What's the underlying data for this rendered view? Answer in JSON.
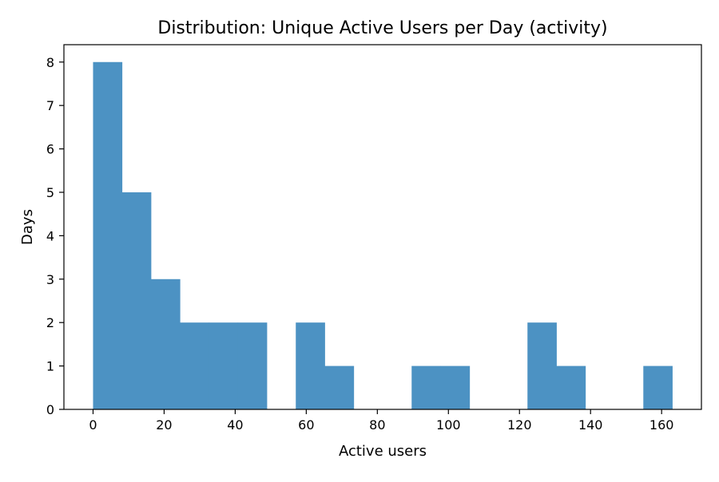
{
  "chart_data": {
    "type": "bar",
    "title": "Distribution: Unique Active Users per Day (activity)",
    "xlabel": "Active users",
    "ylabel": "Days",
    "xlim": [
      -8.2,
      171.2
    ],
    "ylim": [
      0,
      8.4
    ],
    "x_ticks": [
      0,
      20,
      40,
      60,
      80,
      100,
      120,
      140,
      160
    ],
    "y_ticks": [
      0,
      1,
      2,
      3,
      4,
      5,
      6,
      7,
      8
    ],
    "bin_edges": [
      0,
      8.15,
      16.3,
      24.45,
      32.6,
      40.75,
      48.9,
      57.05,
      65.2,
      73.35,
      81.5,
      89.65,
      97.8,
      105.95,
      114.1,
      122.25,
      130.4,
      138.55,
      146.7,
      154.85,
      163
    ],
    "values": [
      8,
      5,
      3,
      2,
      2,
      2,
      0,
      2,
      1,
      0,
      0,
      1,
      1,
      0,
      0,
      2,
      1,
      0,
      0,
      1
    ],
    "bar_color": "#4c92c3",
    "grid": false,
    "legend": "none"
  }
}
